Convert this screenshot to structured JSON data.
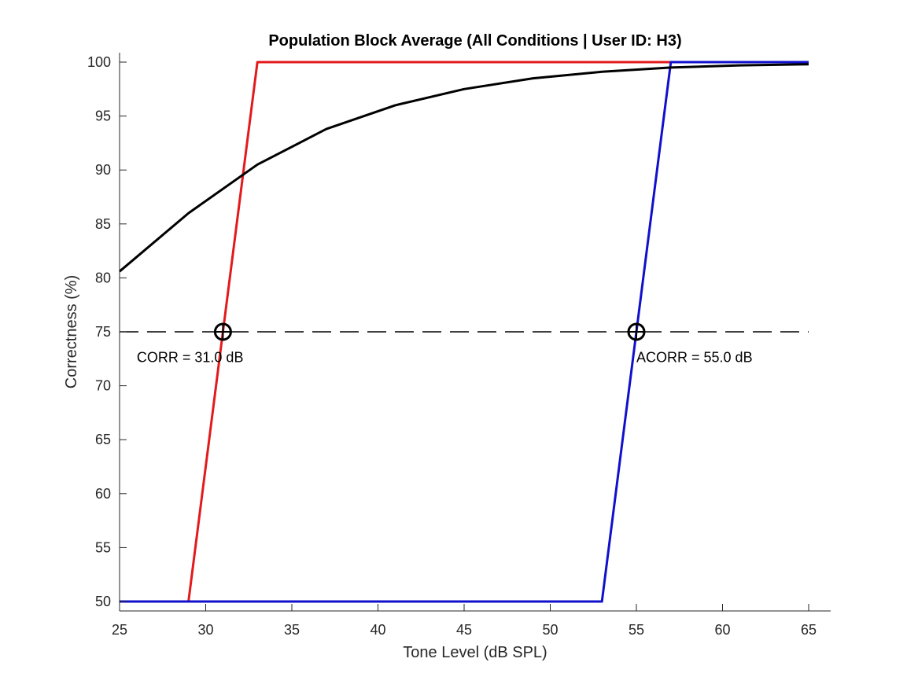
{
  "chart_data": {
    "type": "line",
    "title": "Population Block Average (All Conditions | User ID: H3)",
    "xlabel": "Tone Level (dB SPL)",
    "ylabel": "Correctness (%)",
    "xlim": [
      25,
      65
    ],
    "ylim": [
      50,
      100
    ],
    "xticks": [
      25,
      30,
      35,
      40,
      45,
      50,
      55,
      60,
      65
    ],
    "yticks": [
      50,
      55,
      60,
      65,
      70,
      75,
      80,
      85,
      90,
      95,
      100
    ],
    "grid": false,
    "series": [
      {
        "color": "#000000",
        "style": "solid",
        "x": [
          25,
          29,
          33,
          37,
          41,
          45,
          49,
          53,
          57,
          61,
          65
        ],
        "y": [
          80.6,
          86.0,
          90.5,
          93.8,
          96.0,
          97.5,
          98.5,
          99.1,
          99.5,
          99.7,
          99.8
        ]
      },
      {
        "color": "#e31a1c",
        "style": "solid",
        "x": [
          29,
          33,
          57
        ],
        "y": [
          50,
          100,
          100
        ]
      },
      {
        "color": "#1010cc",
        "style": "solid",
        "x": [
          25,
          53,
          57,
          65
        ],
        "y": [
          50,
          50,
          100,
          100
        ]
      },
      {
        "color": "#000000",
        "style": "dashed",
        "x": [
          25,
          65
        ],
        "y": [
          75,
          75
        ]
      }
    ],
    "markers": [
      {
        "x": 31,
        "y": 75,
        "shape": "circle-plus"
      },
      {
        "x": 55,
        "y": 75,
        "shape": "circle-plus"
      }
    ],
    "annotations": [
      {
        "text": "CORR = 31.0 dB",
        "x": 26,
        "y": 72.2
      },
      {
        "text": "ACORR = 55.0 dB",
        "x": 55,
        "y": 72.2
      }
    ]
  }
}
